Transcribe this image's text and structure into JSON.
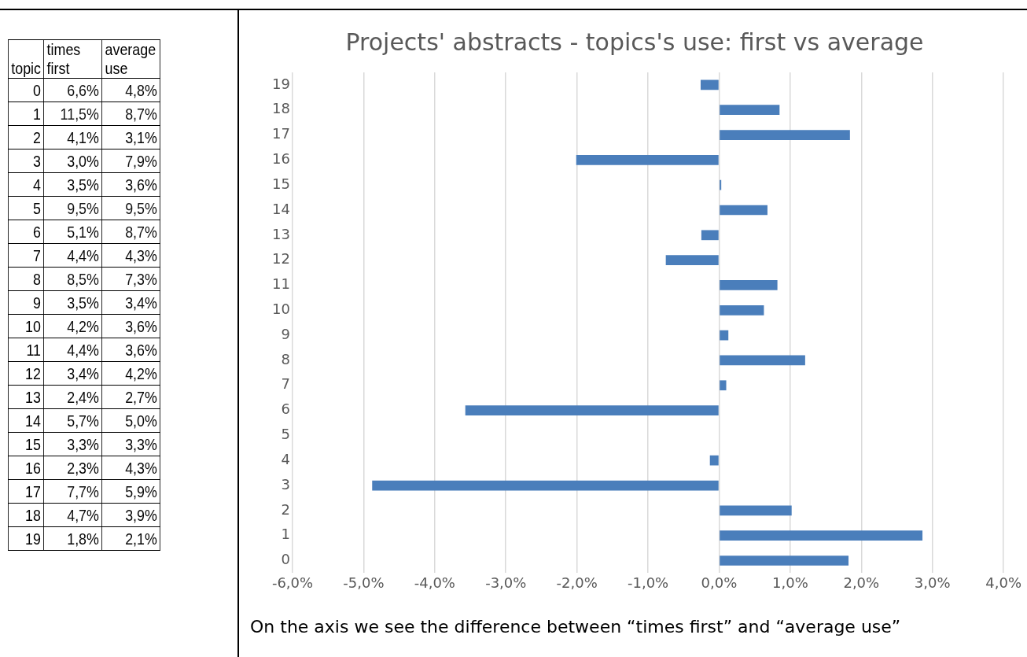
{
  "chart_data": [
    {
      "type": "heatmap",
      "ylabel": "topic",
      "categories": [
        "times first",
        "average use"
      ],
      "y_categories": [
        "0",
        "1",
        "2",
        "3",
        "4",
        "5",
        "6",
        "7",
        "8",
        "9",
        "10",
        "11",
        "12",
        "13",
        "14",
        "15",
        "16",
        "17",
        "18",
        "19"
      ],
      "cells": [
        [
          6.6,
          4.8
        ],
        [
          11.5,
          8.7
        ],
        [
          4.1,
          3.1
        ],
        [
          3.0,
          7.9
        ],
        [
          3.5,
          3.6
        ],
        [
          9.5,
          9.5
        ],
        [
          5.1,
          8.7
        ],
        [
          4.4,
          4.3
        ],
        [
          8.5,
          7.3
        ],
        [
          3.5,
          3.4
        ],
        [
          4.2,
          3.6
        ],
        [
          4.4,
          3.6
        ],
        [
          3.4,
          4.2
        ],
        [
          2.4,
          2.7
        ],
        [
          5.7,
          5.0
        ],
        [
          3.3,
          3.3
        ],
        [
          2.3,
          4.3
        ],
        [
          7.7,
          5.9
        ],
        [
          4.7,
          3.9
        ],
        [
          1.8,
          2.1
        ]
      ],
      "cell_labels": [
        [
          "6,6%",
          "4,8%"
        ],
        [
          "11,5%",
          "8,7%"
        ],
        [
          "4,1%",
          "3,1%"
        ],
        [
          "3,0%",
          "7,9%"
        ],
        [
          "3,5%",
          "3,6%"
        ],
        [
          "9,5%",
          "9,5%"
        ],
        [
          "5,1%",
          "8,7%"
        ],
        [
          "4,4%",
          "4,3%"
        ],
        [
          "8,5%",
          "7,3%"
        ],
        [
          "3,5%",
          "3,4%"
        ],
        [
          "4,2%",
          "3,6%"
        ],
        [
          "4,4%",
          "3,6%"
        ],
        [
          "3,4%",
          "4,2%"
        ],
        [
          "2,4%",
          "2,7%"
        ],
        [
          "5,7%",
          "5,0%"
        ],
        [
          "3,3%",
          "3,3%"
        ],
        [
          "2,3%",
          "4,3%"
        ],
        [
          "7,7%",
          "5,9%"
        ],
        [
          "4,7%",
          "3,9%"
        ],
        [
          "1,8%",
          "2,1%"
        ]
      ]
    },
    {
      "type": "bar",
      "orientation": "horizontal",
      "title": "Projects' abstracts - topics's use: first vs average",
      "categories": [
        "19",
        "18",
        "17",
        "16",
        "15",
        "14",
        "13",
        "12",
        "11",
        "10",
        "9",
        "8",
        "7",
        "6",
        "5",
        "4",
        "3",
        "2",
        "1",
        "0"
      ],
      "values": [
        -0.26,
        0.85,
        1.84,
        -2.01,
        0.03,
        0.68,
        -0.25,
        -0.75,
        0.82,
        0.63,
        0.13,
        1.21,
        0.1,
        -3.57,
        0,
        -0.13,
        -4.88,
        1.02,
        2.86,
        1.82
      ],
      "color": "#4a7ebb",
      "xlim": [
        -6,
        4
      ],
      "xticks": [
        {
          "value": -6,
          "label": "-6,0%"
        },
        {
          "value": -5,
          "label": "-5,0%"
        },
        {
          "value": -4,
          "label": "-4,0%"
        },
        {
          "value": -3,
          "label": "-3,0%"
        },
        {
          "value": -2,
          "label": "-2,0%"
        },
        {
          "value": -1,
          "label": "-1,0%"
        },
        {
          "value": 0,
          "label": "0,0%"
        },
        {
          "value": 1,
          "label": "1,0%"
        },
        {
          "value": 2,
          "label": "2,0%"
        },
        {
          "value": 3,
          "label": "3,0%"
        },
        {
          "value": 4,
          "label": "4,0%"
        }
      ],
      "grid": "x",
      "legend": false,
      "annotations": [
        "On the axis we see the difference between “times first” and “average use”"
      ]
    }
  ]
}
